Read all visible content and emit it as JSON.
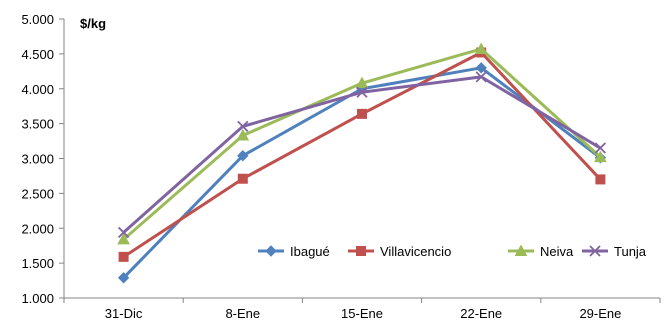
{
  "chart_data": {
    "type": "line",
    "title": "",
    "xlabel": "",
    "ylabel": "",
    "unit_label": "$/kg",
    "categories": [
      "31-Dic",
      "8-Ene",
      "15-Ene",
      "22-Ene",
      "29-Ene"
    ],
    "ylim": [
      1000,
      5000
    ],
    "y_ticks": [
      1000,
      1500,
      2000,
      2500,
      3000,
      3500,
      4000,
      4500,
      5000
    ],
    "y_tick_labels": [
      "1.000",
      "1.500",
      "2.000",
      "2.500",
      "3.000",
      "3.500",
      "4.000",
      "4.500",
      "5.000"
    ],
    "grid": false,
    "legend_position": "bottom-right inside plot",
    "series": [
      {
        "name": "Ibagué",
        "color": "#4F81BD",
        "marker": "diamond",
        "values": [
          1290,
          3040,
          4000,
          4300,
          3010
        ]
      },
      {
        "name": "Villavicencio",
        "color": "#C0504D",
        "marker": "square",
        "values": [
          1590,
          2710,
          3640,
          4520,
          2700
        ]
      },
      {
        "name": "Neiva",
        "color": "#9BBB59",
        "marker": "triangle",
        "values": [
          1840,
          3330,
          4080,
          4570,
          3020
        ]
      },
      {
        "name": "Tunja",
        "color": "#8064A2",
        "marker": "x",
        "values": [
          1940,
          3460,
          3950,
          4170,
          3150
        ]
      }
    ]
  }
}
